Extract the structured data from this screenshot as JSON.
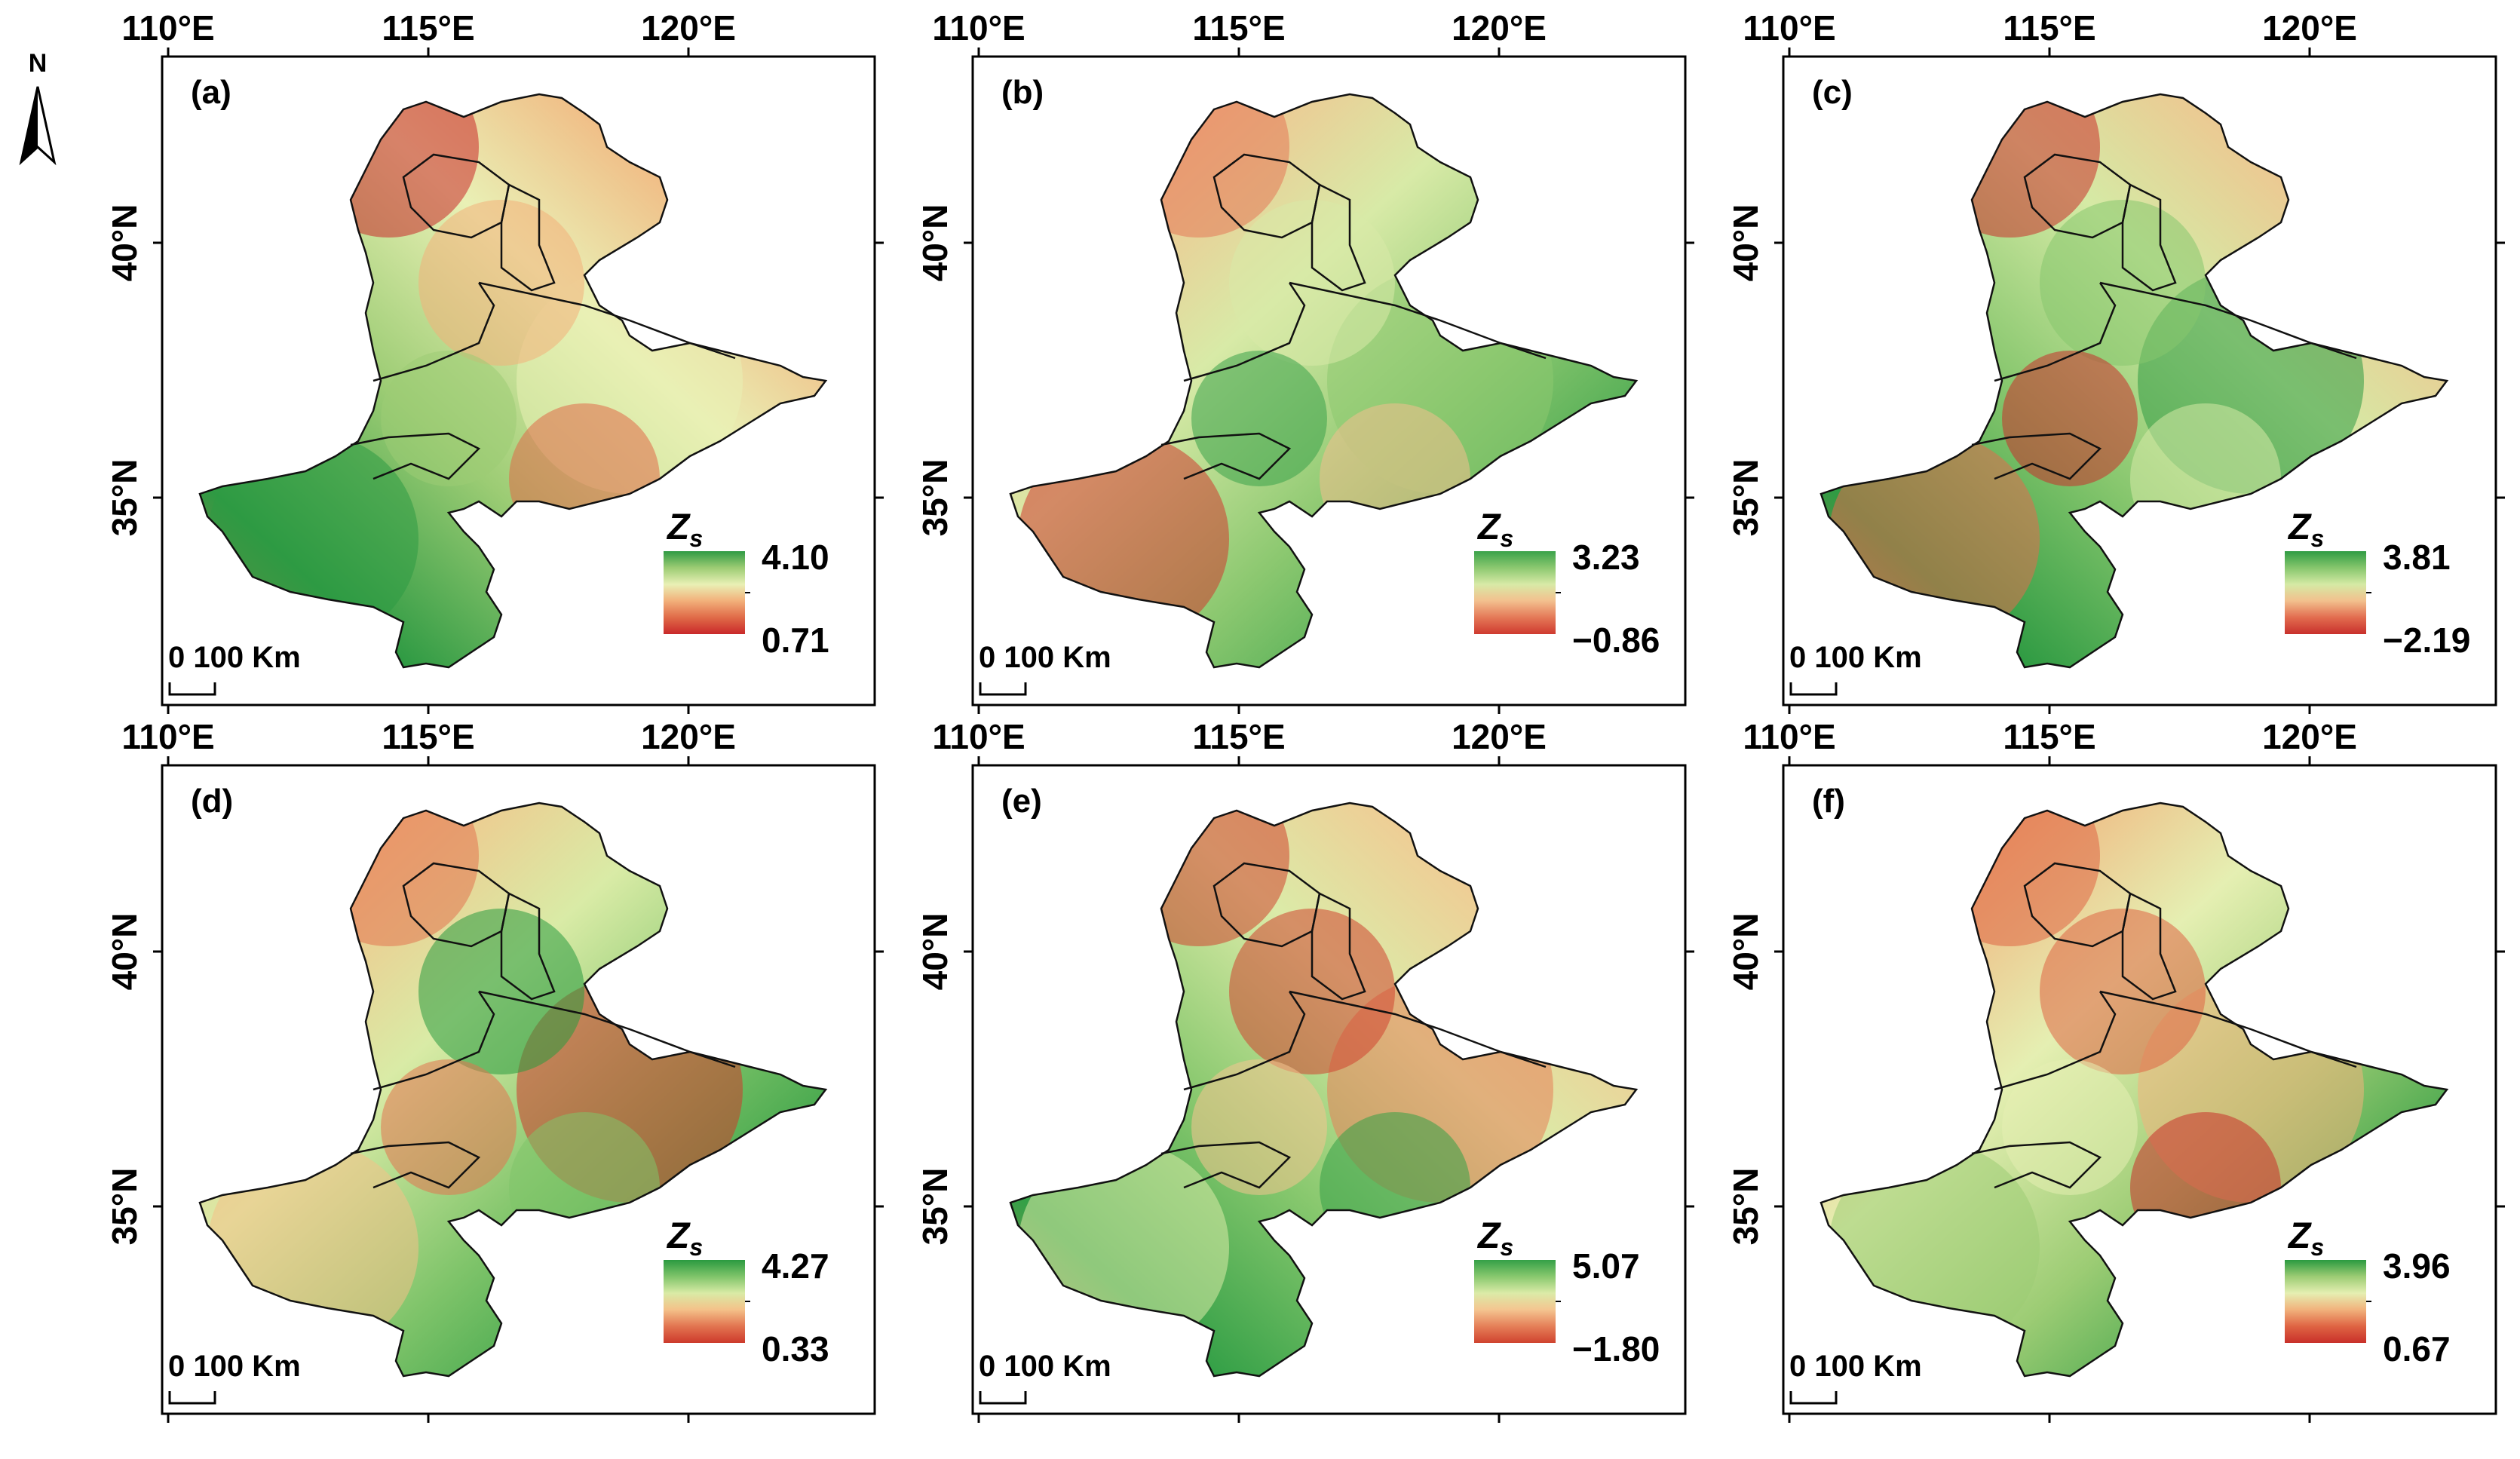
{
  "figure": {
    "north_arrow_label": "N",
    "x_ticks": [
      "110°E",
      "115°E",
      "120°E"
    ],
    "y_ticks": [
      "40°N",
      "35°N"
    ],
    "legend_symbol": "Z",
    "legend_subscript": "s",
    "scale_bar": "0 100 Km"
  },
  "panels": [
    {
      "label": "(a)",
      "max": "4.10",
      "min": "0.71",
      "colors": [
        "#c9282a",
        "#e06a48",
        "#f2b07a",
        "#e9f0b5",
        "#9ccc74",
        "#2e9a43"
      ]
    },
    {
      "label": "(b)",
      "max": "3.23",
      "min": "−0.86",
      "colors": [
        "#cf3a2f",
        "#e47857",
        "#f3c08e",
        "#d8eaa7",
        "#8cc870",
        "#3aa24a"
      ]
    },
    {
      "label": "(c)",
      "max": "3.81",
      "min": "−2.19",
      "colors": [
        "#c8302c",
        "#e26c4f",
        "#f2c08d",
        "#d5eaa5",
        "#86c66d",
        "#2f9b43"
      ]
    },
    {
      "label": "(d)",
      "max": "4.27",
      "min": "0.33",
      "colors": [
        "#cd3a2c",
        "#e27450",
        "#f4c189",
        "#d9eba6",
        "#7fc46a",
        "#2a9a40"
      ]
    },
    {
      "label": "(e)",
      "max": "5.07",
      "min": "−1.80",
      "colors": [
        "#d0432f",
        "#e57f58",
        "#f4c590",
        "#dbeba8",
        "#88c86e",
        "#34a047"
      ]
    },
    {
      "label": "(f)",
      "max": "3.96",
      "min": "0.67",
      "colors": [
        "#c9302a",
        "#df6443",
        "#f1b27c",
        "#e5efb2",
        "#9ccc74",
        "#2a9a40"
      ]
    }
  ]
}
